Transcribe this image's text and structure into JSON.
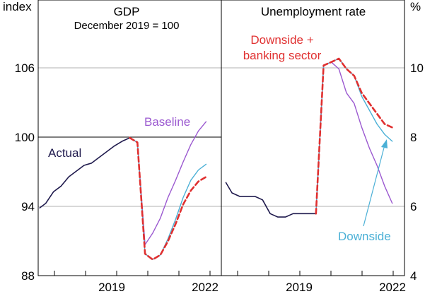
{
  "colors": {
    "actual": "#1f1a4d",
    "baseline": "#9b59d0",
    "downside": "#4bb0d6",
    "banking": "#e03030",
    "grid": "#b0b0b0",
    "axis": "#000000"
  },
  "chart_data": [
    {
      "type": "line",
      "title": "GDP",
      "subtitle": "December 2019 = 100",
      "ylabel": "index",
      "ylim": [
        88,
        112
      ],
      "yticks": [
        "88",
        "94",
        "100",
        "106"
      ],
      "xlim": [
        2016.75,
        2022.75
      ],
      "xticks": [
        "2019",
        "2022"
      ],
      "annotations": {
        "actual": "Actual",
        "baseline": "Baseline"
      },
      "series": [
        {
          "name": "Actual",
          "color_key": "actual",
          "x": [
            2016.8,
            2017.0,
            2017.25,
            2017.5,
            2017.75,
            2018.0,
            2018.25,
            2018.5,
            2018.75,
            2019.0,
            2019.25,
            2019.5,
            2019.75
          ],
          "y": [
            93.9,
            94.3,
            95.3,
            95.8,
            96.6,
            97.1,
            97.6,
            97.8,
            98.3,
            98.8,
            99.3,
            99.7,
            100.0
          ]
        },
        {
          "name": "Baseline",
          "color_key": "baseline",
          "x": [
            2019.75,
            2020.0,
            2020.25,
            2020.5,
            2020.75,
            2021.0,
            2021.25,
            2021.5,
            2021.75,
            2022.0,
            2022.25
          ],
          "y": [
            100.0,
            99.6,
            90.7,
            91.7,
            93.0,
            94.8,
            96.3,
            97.9,
            99.4,
            100.6,
            101.4
          ]
        },
        {
          "name": "Downside",
          "color_key": "downside",
          "x": [
            2019.75,
            2020.0,
            2020.25,
            2020.5,
            2020.75,
            2021.0,
            2021.25,
            2021.5,
            2021.75,
            2022.0,
            2022.25
          ],
          "y": [
            100.0,
            99.6,
            89.9,
            89.4,
            89.8,
            91.2,
            92.9,
            94.8,
            96.3,
            97.2,
            97.7
          ]
        },
        {
          "name": "Downside + banking sector",
          "color_key": "banking",
          "dashed": true,
          "x": [
            2019.75,
            2020.0,
            2020.25,
            2020.5,
            2020.75,
            2021.0,
            2021.25,
            2021.5,
            2021.75,
            2022.0,
            2022.25
          ],
          "y": [
            100.0,
            99.6,
            89.9,
            89.4,
            89.8,
            91.0,
            92.5,
            94.2,
            95.4,
            96.2,
            96.6
          ]
        }
      ]
    },
    {
      "type": "line",
      "title": "Unemployment rate",
      "ylabel": "%",
      "ylim": [
        4,
        12
      ],
      "yticks": [
        "4",
        "6",
        "8",
        "10"
      ],
      "xlim": [
        2016.75,
        2022.75
      ],
      "xticks": [
        "2019",
        "2022"
      ],
      "annotations": {
        "banking_line1": "Downside +",
        "banking_line2": "banking sector",
        "downside": "Downside"
      },
      "series": [
        {
          "name": "Actual",
          "color_key": "actual",
          "x": [
            2016.9,
            2017.1,
            2017.35,
            2017.6,
            2017.85,
            2018.1,
            2018.35,
            2018.6,
            2018.85,
            2019.1,
            2019.35,
            2019.6,
            2019.85
          ],
          "y": [
            6.7,
            6.4,
            6.3,
            6.3,
            6.3,
            6.2,
            5.8,
            5.7,
            5.7,
            5.8,
            5.8,
            5.8,
            5.8
          ]
        },
        {
          "name": "Baseline",
          "color_key": "baseline",
          "x": [
            2019.85,
            2020.1,
            2020.35,
            2020.6,
            2020.85,
            2021.1,
            2021.35,
            2021.6,
            2021.85,
            2022.1,
            2022.35
          ],
          "y": [
            5.8,
            10.1,
            10.2,
            10.0,
            9.3,
            9.0,
            8.3,
            7.7,
            7.2,
            6.6,
            6.1
          ]
        },
        {
          "name": "Downside",
          "color_key": "downside",
          "x": [
            2019.85,
            2020.1,
            2020.35,
            2020.6,
            2020.85,
            2021.1,
            2021.35,
            2021.6,
            2021.85,
            2022.1,
            2022.35
          ],
          "y": [
            5.8,
            10.1,
            10.2,
            10.3,
            10.0,
            9.8,
            9.2,
            8.8,
            8.4,
            8.1,
            7.9
          ]
        },
        {
          "name": "Downside + banking sector",
          "color_key": "banking",
          "dashed": true,
          "x": [
            2019.85,
            2020.1,
            2020.35,
            2020.6,
            2020.85,
            2021.1,
            2021.35,
            2021.6,
            2021.85,
            2022.1,
            2022.35
          ],
          "y": [
            5.8,
            10.1,
            10.2,
            10.3,
            10.0,
            9.8,
            9.3,
            9.0,
            8.7,
            8.4,
            8.3
          ]
        }
      ]
    }
  ]
}
